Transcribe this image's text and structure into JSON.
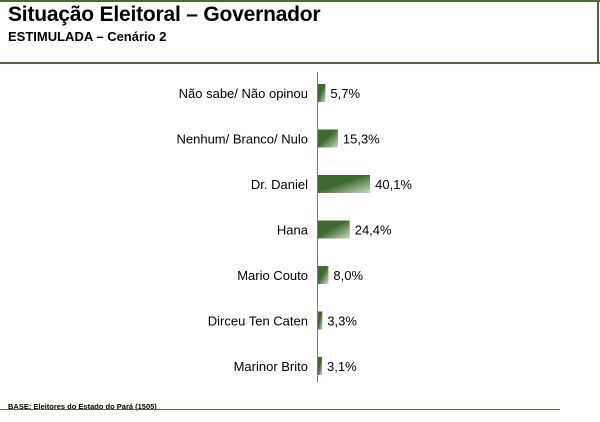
{
  "header": {
    "title": "Situação Eleitoral – Governador",
    "subtitle": "ESTIMULADA – Cenário 2"
  },
  "footer": {
    "base_note": "BASE: Eleitores do Estado do Pará (1505)"
  },
  "colors": {
    "bar_dark": "#3f6a2f",
    "bar_light": "#c9dcbf",
    "rule": "#4a6b35"
  },
  "chart_data": {
    "type": "bar",
    "orientation": "horizontal",
    "categories": [
      "Não sabe/ Não opinou",
      "Nenhum/ Branco/ Nulo",
      "Dr. Daniel",
      "Hana",
      "Mario Couto",
      "Dirceu Ten Caten",
      "Marinor Brito"
    ],
    "values": [
      5.7,
      15.3,
      40.1,
      24.4,
      8.0,
      3.3,
      3.1
    ],
    "value_labels": [
      "5,7%",
      "15,3%",
      "40,1%",
      "24,4%",
      "8,0%",
      "3,3%",
      "3,1%"
    ],
    "unit": "%",
    "grid": false,
    "legend": "none"
  }
}
